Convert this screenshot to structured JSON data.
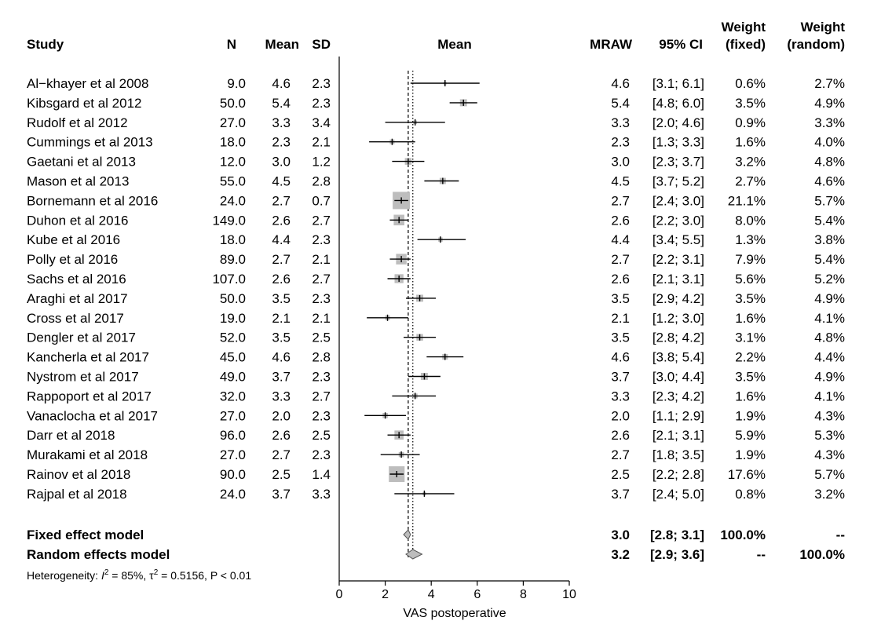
{
  "chart_data": {
    "type": "forest",
    "columns": {
      "study": "Study",
      "n": "N",
      "mean": "Mean",
      "sd": "SD",
      "plot": "Mean",
      "mraw": "MRAW",
      "ci": "95% CI",
      "weight_fixed": [
        "Weight",
        "(fixed)"
      ],
      "weight_random": [
        "Weight",
        "(random)"
      ]
    },
    "studies": [
      {
        "study": "Al−khayer et al 2008",
        "n": "9.0",
        "mean": "4.6",
        "sd": "2.3",
        "mraw": "4.6",
        "ci": "[3.1; 6.1]",
        "wf": "0.6%",
        "wr": "2.7%",
        "est": 4.6,
        "lo": 3.1,
        "hi": 6.1,
        "weight": 0.6
      },
      {
        "study": "Kibsgard et al 2012",
        "n": "50.0",
        "mean": "5.4",
        "sd": "2.3",
        "mraw": "5.4",
        "ci": "[4.8; 6.0]",
        "wf": "3.5%",
        "wr": "4.9%",
        "est": 5.4,
        "lo": 4.8,
        "hi": 6.0,
        "weight": 3.5
      },
      {
        "study": "Rudolf et al 2012",
        "n": "27.0",
        "mean": "3.3",
        "sd": "3.4",
        "mraw": "3.3",
        "ci": "[2.0; 4.6]",
        "wf": "0.9%",
        "wr": "3.3%",
        "est": 3.3,
        "lo": 2.0,
        "hi": 4.6,
        "weight": 0.9
      },
      {
        "study": "Cummings et al 2013",
        "n": "18.0",
        "mean": "2.3",
        "sd": "2.1",
        "mraw": "2.3",
        "ci": "[1.3; 3.3]",
        "wf": "1.6%",
        "wr": "4.0%",
        "est": 2.3,
        "lo": 1.3,
        "hi": 3.3,
        "weight": 1.6
      },
      {
        "study": "Gaetani et al 2013",
        "n": "12.0",
        "mean": "3.0",
        "sd": "1.2",
        "mraw": "3.0",
        "ci": "[2.3; 3.7]",
        "wf": "3.2%",
        "wr": "4.8%",
        "est": 3.0,
        "lo": 2.3,
        "hi": 3.7,
        "weight": 3.2
      },
      {
        "study": "Mason et al 2013",
        "n": "55.0",
        "mean": "4.5",
        "sd": "2.8",
        "mraw": "4.5",
        "ci": "[3.7; 5.2]",
        "wf": "2.7%",
        "wr": "4.6%",
        "est": 4.5,
        "lo": 3.7,
        "hi": 5.2,
        "weight": 2.7
      },
      {
        "study": "Bornemann et al 2016",
        "n": "24.0",
        "mean": "2.7",
        "sd": "0.7",
        "mraw": "2.7",
        "ci": "[2.4; 3.0]",
        "wf": "21.1%",
        "wr": "5.7%",
        "est": 2.7,
        "lo": 2.4,
        "hi": 3.0,
        "weight": 21.1
      },
      {
        "study": "Duhon et al 2016",
        "n": "149.0",
        "mean": "2.6",
        "sd": "2.7",
        "mraw": "2.6",
        "ci": "[2.2; 3.0]",
        "wf": "8.0%",
        "wr": "5.4%",
        "est": 2.6,
        "lo": 2.2,
        "hi": 3.0,
        "weight": 8.0
      },
      {
        "study": "Kube et al 2016",
        "n": "18.0",
        "mean": "4.4",
        "sd": "2.3",
        "mraw": "4.4",
        "ci": "[3.4; 5.5]",
        "wf": "1.3%",
        "wr": "3.8%",
        "est": 4.4,
        "lo": 3.4,
        "hi": 5.5,
        "weight": 1.3
      },
      {
        "study": "Polly et al 2016",
        "n": "89.0",
        "mean": "2.7",
        "sd": "2.1",
        "mraw": "2.7",
        "ci": "[2.2; 3.1]",
        "wf": "7.9%",
        "wr": "5.4%",
        "est": 2.7,
        "lo": 2.2,
        "hi": 3.1,
        "weight": 7.9
      },
      {
        "study": "Sachs et al 2016",
        "n": "107.0",
        "mean": "2.6",
        "sd": "2.7",
        "mraw": "2.6",
        "ci": "[2.1; 3.1]",
        "wf": "5.6%",
        "wr": "5.2%",
        "est": 2.6,
        "lo": 2.1,
        "hi": 3.1,
        "weight": 5.6
      },
      {
        "study": "Araghi et al 2017",
        "n": "50.0",
        "mean": "3.5",
        "sd": "2.3",
        "mraw": "3.5",
        "ci": "[2.9; 4.2]",
        "wf": "3.5%",
        "wr": "4.9%",
        "est": 3.5,
        "lo": 2.9,
        "hi": 4.2,
        "weight": 3.5
      },
      {
        "study": "Cross et al 2017",
        "n": "19.0",
        "mean": "2.1",
        "sd": "2.1",
        "mraw": "2.1",
        "ci": "[1.2; 3.0]",
        "wf": "1.6%",
        "wr": "4.1%",
        "est": 2.1,
        "lo": 1.2,
        "hi": 3.0,
        "weight": 1.6
      },
      {
        "study": "Dengler et al 2017",
        "n": "52.0",
        "mean": "3.5",
        "sd": "2.5",
        "mraw": "3.5",
        "ci": "[2.8; 4.2]",
        "wf": "3.1%",
        "wr": "4.8%",
        "est": 3.5,
        "lo": 2.8,
        "hi": 4.2,
        "weight": 3.1
      },
      {
        "study": "Kancherla et al 2017",
        "n": "45.0",
        "mean": "4.6",
        "sd": "2.8",
        "mraw": "4.6",
        "ci": "[3.8; 5.4]",
        "wf": "2.2%",
        "wr": "4.4%",
        "est": 4.6,
        "lo": 3.8,
        "hi": 5.4,
        "weight": 2.2
      },
      {
        "study": "Nystrom et al 2017",
        "n": "49.0",
        "mean": "3.7",
        "sd": "2.3",
        "mraw": "3.7",
        "ci": "[3.0; 4.4]",
        "wf": "3.5%",
        "wr": "4.9%",
        "est": 3.7,
        "lo": 3.0,
        "hi": 4.4,
        "weight": 3.5
      },
      {
        "study": "Rappoport et al 2017",
        "n": "32.0",
        "mean": "3.3",
        "sd": "2.7",
        "mraw": "3.3",
        "ci": "[2.3; 4.2]",
        "wf": "1.6%",
        "wr": "4.1%",
        "est": 3.3,
        "lo": 2.3,
        "hi": 4.2,
        "weight": 1.6
      },
      {
        "study": "Vanaclocha et al 2017",
        "n": "27.0",
        "mean": "2.0",
        "sd": "2.3",
        "mraw": "2.0",
        "ci": "[1.1; 2.9]",
        "wf": "1.9%",
        "wr": "4.3%",
        "est": 2.0,
        "lo": 1.1,
        "hi": 2.9,
        "weight": 1.9
      },
      {
        "study": "Darr et al 2018",
        "n": "96.0",
        "mean": "2.6",
        "sd": "2.5",
        "mraw": "2.6",
        "ci": "[2.1; 3.1]",
        "wf": "5.9%",
        "wr": "5.3%",
        "est": 2.6,
        "lo": 2.1,
        "hi": 3.1,
        "weight": 5.9
      },
      {
        "study": "Murakami et al 2018",
        "n": "27.0",
        "mean": "2.7",
        "sd": "2.3",
        "mraw": "2.7",
        "ci": "[1.8; 3.5]",
        "wf": "1.9%",
        "wr": "4.3%",
        "est": 2.7,
        "lo": 1.8,
        "hi": 3.5,
        "weight": 1.9
      },
      {
        "study": "Rainov et al 2018",
        "n": "90.0",
        "mean": "2.5",
        "sd": "1.4",
        "mraw": "2.5",
        "ci": "[2.2; 2.8]",
        "wf": "17.6%",
        "wr": "5.7%",
        "est": 2.5,
        "lo": 2.2,
        "hi": 2.8,
        "weight": 17.6
      },
      {
        "study": "Rajpal et al 2018",
        "n": "24.0",
        "mean": "3.7",
        "sd": "3.3",
        "mraw": "3.7",
        "ci": "[2.4; 5.0]",
        "wf": "0.8%",
        "wr": "3.2%",
        "est": 3.7,
        "lo": 2.4,
        "hi": 5.0,
        "weight": 0.8
      }
    ],
    "summary": [
      {
        "label": "Fixed effect model",
        "mraw": "3.0",
        "ci": "[2.8; 3.1]",
        "wf": "100.0%",
        "wr": "--",
        "est": 3.0,
        "lo": 2.8,
        "hi": 3.1
      },
      {
        "label": "Random effects model",
        "mraw": "3.2",
        "ci": "[2.9; 3.6]",
        "wf": "--",
        "wr": "100.0%",
        "est": 3.2,
        "lo": 2.9,
        "hi": 3.6
      }
    ],
    "heterogeneity": {
      "prefix": "Heterogeneity: ",
      "i2_symbol": "I",
      "i2_sup": "2",
      "i2_value": " = 85%, ",
      "tau_symbol": "τ",
      "tau_sup": "2",
      "tau_value": " = 0.5156, P < 0.01"
    },
    "x_axis": {
      "label": "VAS postoperative",
      "range": [
        0,
        10
      ],
      "ticks": [
        0,
        2,
        4,
        6,
        8,
        10
      ],
      "tick_labels": [
        "0",
        "2",
        "4",
        "6",
        "8",
        "10"
      ]
    },
    "reference_lines": {
      "fixed": 3.0,
      "random": 3.2,
      "null": 0
    },
    "colors": {
      "text": "#111111",
      "square": "#bdbdbd",
      "diamond": "#bdbdbd",
      "line": "#000000"
    }
  }
}
